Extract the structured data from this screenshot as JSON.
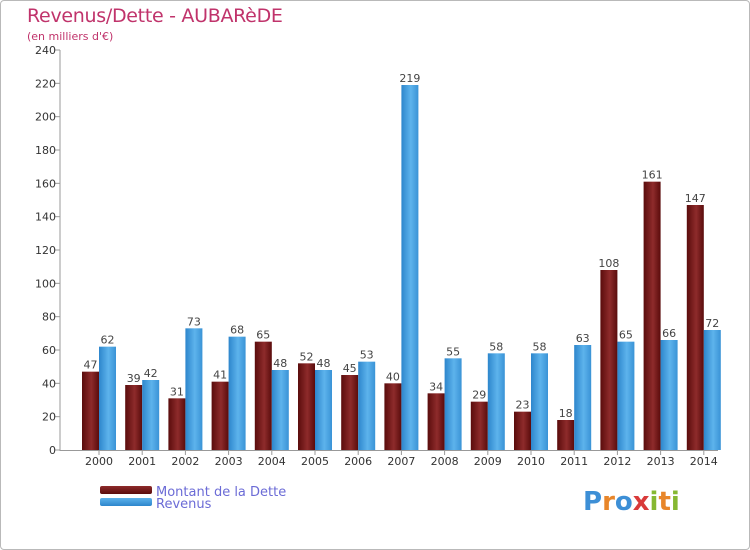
{
  "title": "Revenus/Dette - AUBARèDE",
  "subtitle": "(en milliers d'€)",
  "legend": {
    "debt_label": "Montant de la Dette",
    "revenue_label": "Revenus"
  },
  "brand": {
    "text": "Proxiti",
    "letters": [
      "P",
      "r",
      "o",
      "x",
      "i",
      "t",
      "i"
    ]
  },
  "colors": {
    "debt": "#7a1a1a",
    "revenue": "#4aa3e0",
    "title": "#c0336b"
  },
  "chart_data": {
    "type": "bar",
    "title": "Revenus/Dette - AUBARèDE",
    "ylabel": "(en milliers d'€)",
    "xlabel": "",
    "categories": [
      "2000",
      "2001",
      "2002",
      "2003",
      "2004",
      "2005",
      "2006",
      "2007",
      "2008",
      "2009",
      "2010",
      "2011",
      "2012",
      "2013",
      "2014"
    ],
    "series": [
      {
        "name": "Montant de la Dette",
        "values": [
          47,
          39,
          31,
          41,
          65,
          52,
          45,
          40,
          34,
          29,
          23,
          18,
          108,
          161,
          147
        ]
      },
      {
        "name": "Revenus",
        "values": [
          62,
          42,
          73,
          68,
          48,
          48,
          53,
          219,
          55,
          58,
          58,
          63,
          65,
          66,
          72
        ]
      }
    ],
    "ylim": [
      0,
      240
    ],
    "yticks": [
      0,
      20,
      40,
      60,
      80,
      100,
      120,
      140,
      160,
      180,
      200,
      220,
      240
    ],
    "grid": false,
    "legend_position": "bottom-left"
  }
}
